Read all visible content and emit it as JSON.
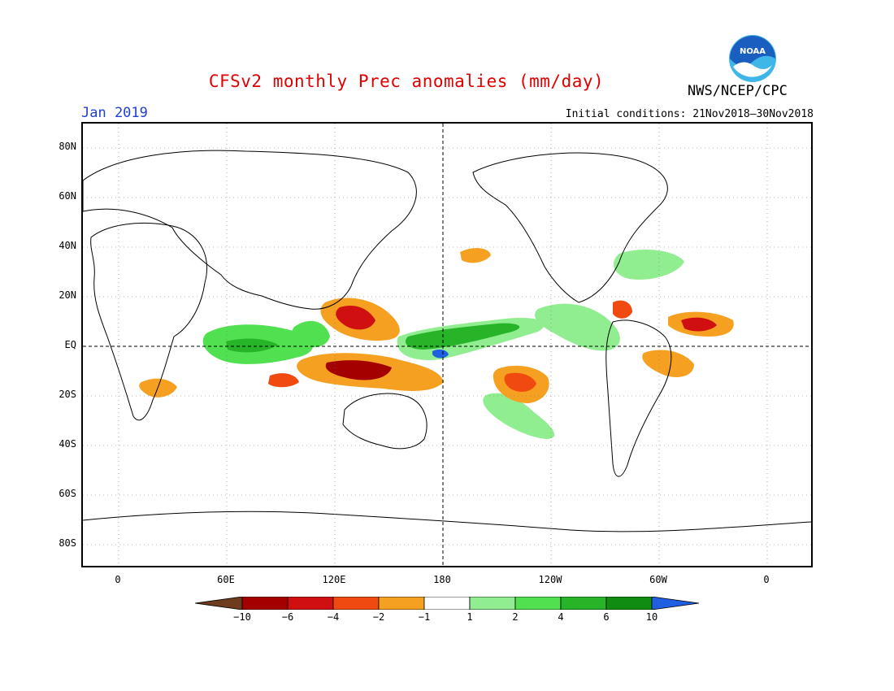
{
  "header": {
    "title": "CFSv2 monthly Prec anomalies (mm/day)",
    "agency": "NWS/NCEP/CPC",
    "period": "Jan 2019",
    "initial_conditions": "Initial conditions: 21Nov2018–30Nov2018",
    "logo_text": "NOAA"
  },
  "axes": {
    "y_ticks": [
      "80N",
      "60N",
      "40N",
      "20N",
      "EQ",
      "20S",
      "40S",
      "60S",
      "80S"
    ],
    "x_ticks": [
      "0",
      "60E",
      "120E",
      "180",
      "120W",
      "60W",
      "0"
    ]
  },
  "colorbar": {
    "labels": [
      "−10",
      "−6",
      "−4",
      "−2",
      "−1",
      "1",
      "2",
      "4",
      "6",
      "10"
    ],
    "colors": [
      "#6e3b1e",
      "#a40000",
      "#d01010",
      "#f04a10",
      "#f5a020",
      "#ffffff",
      "#90ee90",
      "#50e050",
      "#28b428",
      "#108c10",
      "#2060e0"
    ]
  },
  "colors": {
    "title": "#e00000",
    "period": "#2040d0",
    "logo_blue": "#1a5fbf",
    "logo_cyan": "#3fb6e8"
  }
}
